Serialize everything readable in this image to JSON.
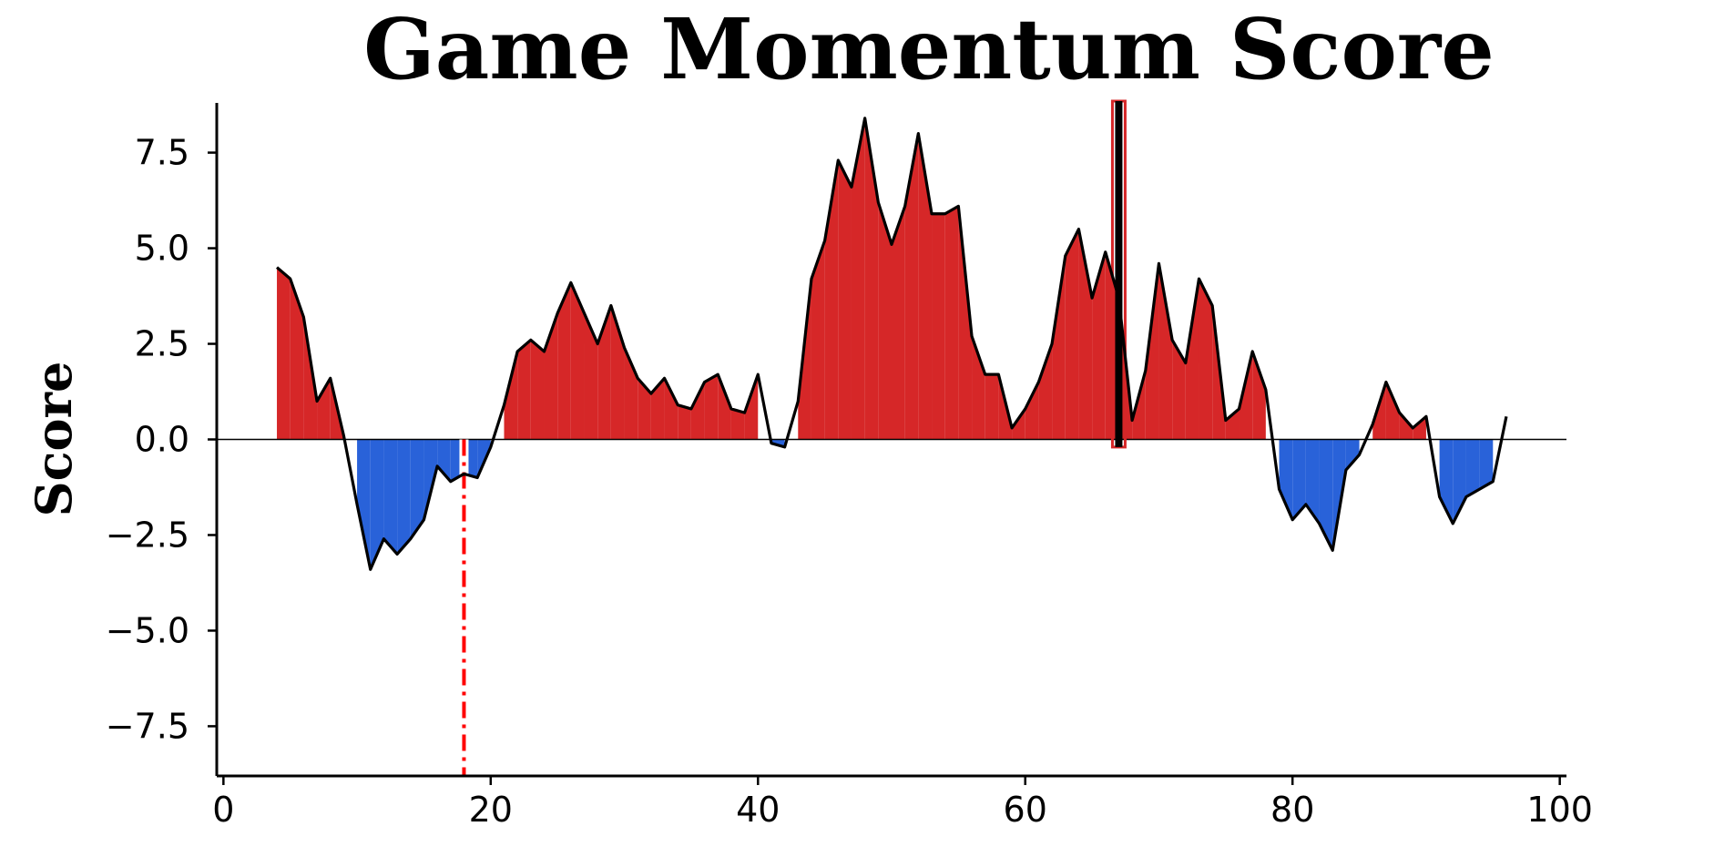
{
  "chart_data": {
    "type": "area",
    "title": "Game Momentum Score",
    "xlabel": "",
    "ylabel": "Score",
    "xlim": [
      -0.5,
      100.5
    ],
    "ylim": [
      -8.8,
      8.8
    ],
    "x_ticks": [
      0,
      20,
      40,
      60,
      80,
      100
    ],
    "x_tick_labels": [
      "0",
      "20",
      "40",
      "60",
      "80",
      "100"
    ],
    "y_ticks": [
      7.5,
      5.0,
      2.5,
      0.0,
      -2.5,
      -5.0,
      -7.5
    ],
    "y_tick_labels": [
      "7.5",
      "5.0",
      "2.5",
      "0.0",
      "−2.5",
      "−5.0",
      "−7.5"
    ],
    "grid": false,
    "positive_fill_color": "#d62728",
    "negative_fill_color": "#2962d9",
    "line_color": "#000000",
    "x": [
      4,
      5,
      6,
      7,
      8,
      9,
      10,
      11,
      12,
      13,
      14,
      15,
      16,
      17,
      18,
      19,
      20,
      21,
      22,
      23,
      24,
      25,
      26,
      27,
      28,
      29,
      30,
      31,
      32,
      33,
      34,
      35,
      36,
      37,
      38,
      39,
      40,
      41,
      42,
      43,
      44,
      45,
      46,
      47,
      48,
      49,
      50,
      51,
      52,
      53,
      54,
      55,
      56,
      57,
      58,
      59,
      60,
      61,
      62,
      63,
      64,
      65,
      66,
      67,
      68,
      69,
      70,
      71,
      72,
      73,
      74,
      75,
      76,
      77,
      78,
      79,
      80,
      81,
      82,
      83,
      84,
      85,
      86,
      87,
      88,
      89,
      90,
      91,
      92,
      93,
      94,
      95,
      96
    ],
    "series": [
      {
        "values": [
          4.5,
          4.2,
          3.2,
          1.0,
          1.6,
          0.1,
          -1.7,
          -3.4,
          -2.6,
          -3.0,
          -2.6,
          -2.1,
          -0.7,
          -1.1,
          -0.9,
          -1.0,
          -0.2,
          0.9,
          2.3,
          2.6,
          2.3,
          3.3,
          4.1,
          3.3,
          2.5,
          3.5,
          2.4,
          1.6,
          1.2,
          1.6,
          0.9,
          0.8,
          1.5,
          1.7,
          0.8,
          0.7,
          1.7,
          -0.1,
          -0.2,
          1.0,
          4.2,
          5.2,
          7.3,
          6.6,
          8.4,
          6.2,
          5.1,
          6.1,
          8.0,
          5.9,
          5.9,
          6.1,
          2.7,
          1.7,
          1.7,
          0.3,
          0.8,
          1.5,
          2.5,
          4.8,
          5.5,
          3.7,
          4.9,
          3.7,
          0.5,
          1.8,
          4.6,
          2.6,
          2.0,
          4.2,
          3.5,
          0.5,
          0.8,
          2.3,
          1.3,
          -1.3,
          -2.1,
          -1.7,
          -2.2,
          -2.9,
          -0.8,
          -0.4,
          0.4,
          1.5,
          0.7,
          0.3,
          0.6,
          -1.5,
          -2.2,
          -1.5,
          -1.3,
          -1.1,
          0.6
        ]
      }
    ],
    "annotations": [
      {
        "type": "vline",
        "x": 18,
        "style": "dash-dot",
        "color": "#ff0000"
      },
      {
        "type": "vline",
        "x": 67,
        "style": "solid-thick",
        "color": "#000000",
        "outline_color": "#d62728"
      }
    ]
  }
}
